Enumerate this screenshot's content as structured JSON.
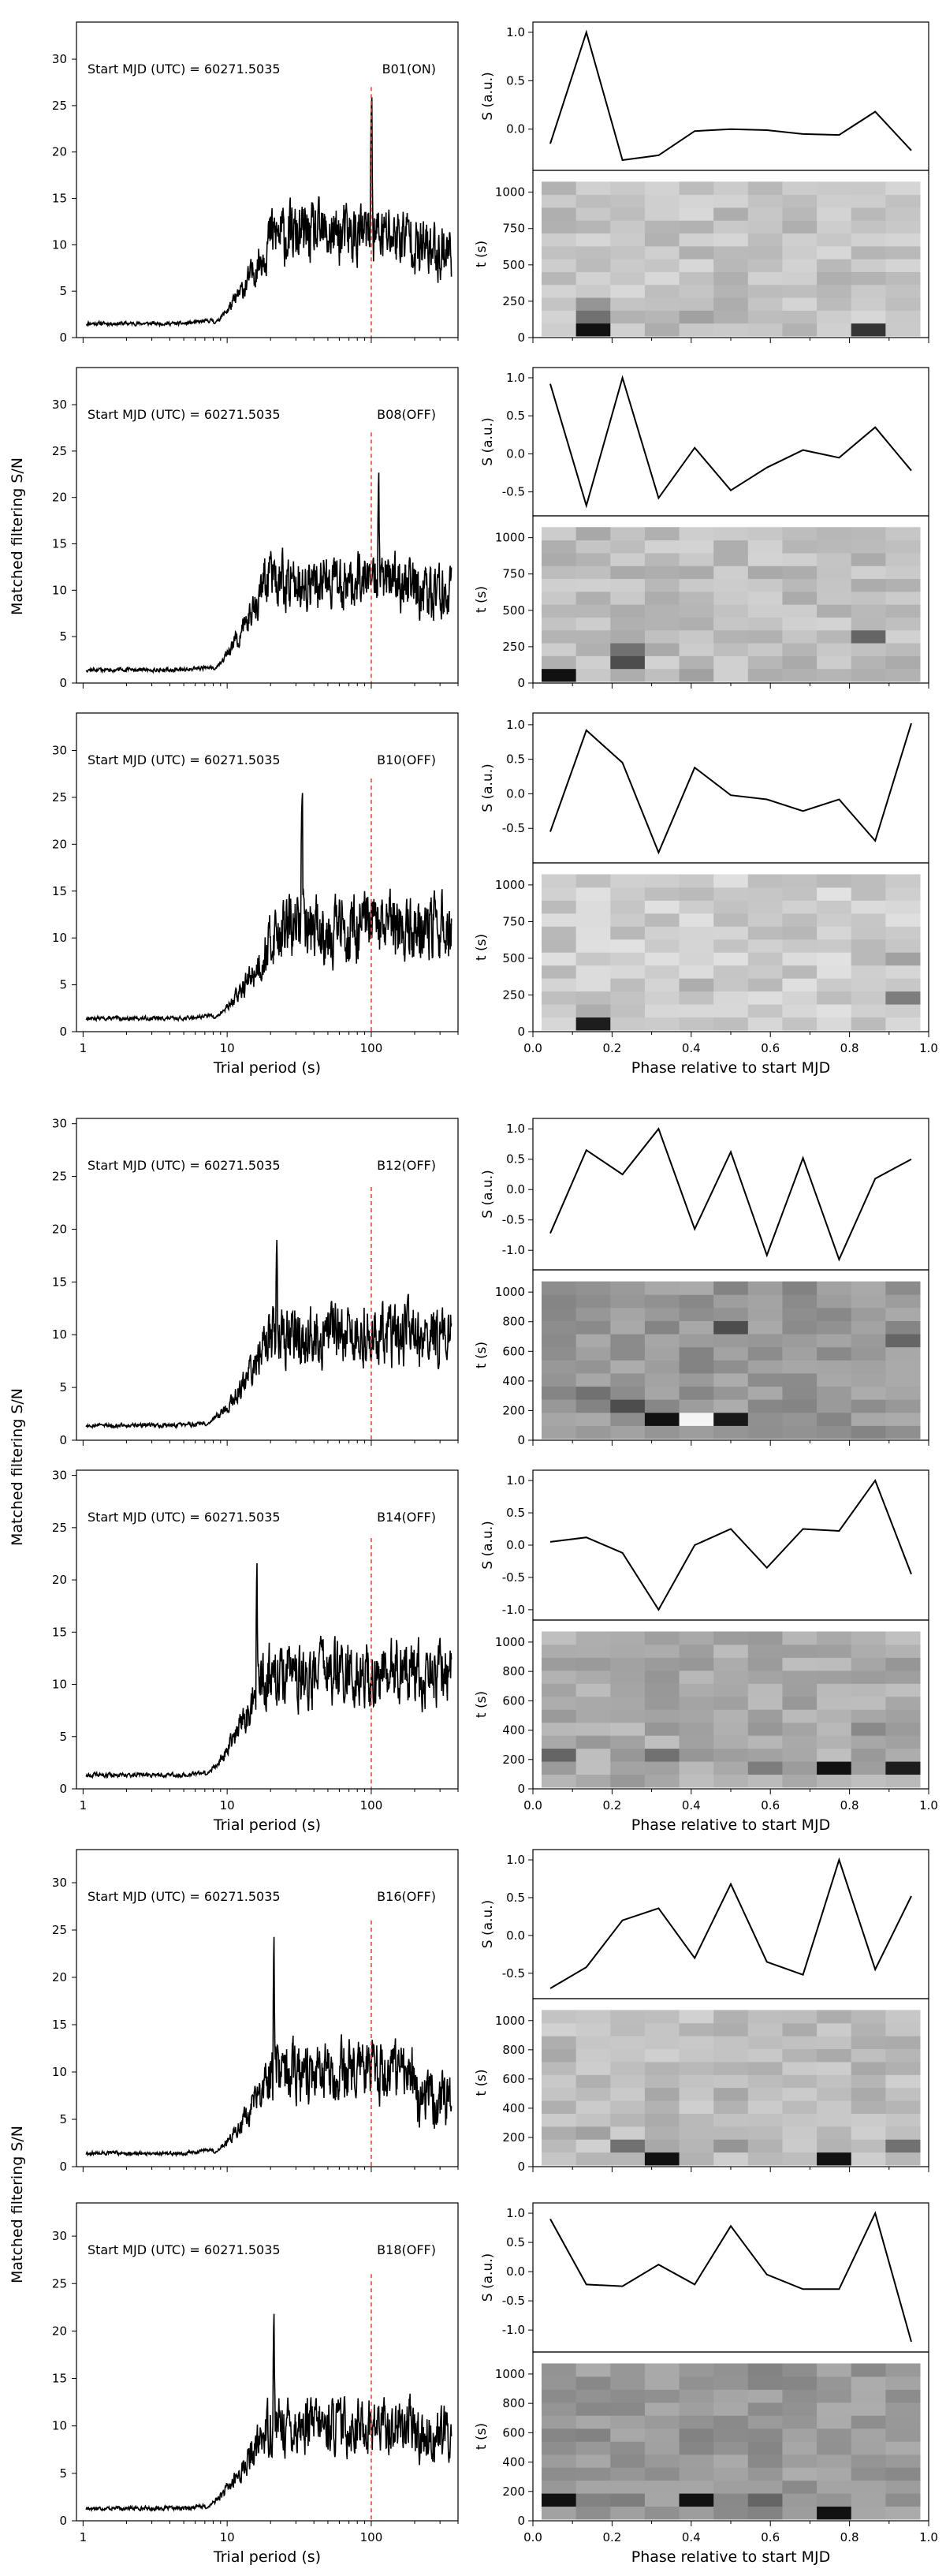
{
  "figures": [
    {
      "xlabel_left": "Trial period (s)",
      "xlabel_right": "Phase relative to start MJD",
      "ylabel_left": "Matched filtering S/N",
      "ylabel_profile": "S (a.u.)",
      "ylabel_heat": "t (s)"
    },
    {
      "xlabel_left": "Trial period (s)",
      "xlabel_right": "Phase relative to start MJD",
      "ylabel_left": "Matched filtering S/N",
      "ylabel_profile": "S (a.u.)",
      "ylabel_heat": "t (s)"
    },
    {
      "xlabel_left": "Trial period (s)",
      "xlabel_right": "Phase relative to start MJD",
      "ylabel_left": "Matched filtering S/N",
      "ylabel_profile": "S (a.u.)",
      "ylabel_heat": "t (s)"
    }
  ],
  "chart_data": [
    {
      "type": "line",
      "panel": "periodogram",
      "annotation": "Start MJD (UTC) = 60271.5035",
      "beam_label": "B01(ON)",
      "xscale": "log",
      "xlim": [
        0.9,
        400
      ],
      "ylim": [
        0,
        34
      ],
      "xticks": [
        1,
        10,
        100
      ],
      "xticklabels": [],
      "yticks": [
        0,
        5,
        10,
        15,
        20,
        25,
        30
      ],
      "marker_period": 100,
      "marker_top": 27,
      "shape": {
        "base": 1.4,
        "jit": 0.6,
        "rise": 8,
        "rise_end": 20,
        "level": 11,
        "var": 4.5,
        "late": 9.5,
        "peak_x": 100,
        "peak_y": 26.5,
        "seed": 11
      },
      "series": [
        {
          "values": [
            -0.15,
            1.0,
            -0.32,
            -0.27,
            -0.02,
            0.0,
            -0.01,
            -0.05,
            -0.06,
            0.18,
            -0.22
          ]
        }
      ],
      "heat_ylim": [
        0,
        1150
      ],
      "heat_yticks": [
        0,
        250,
        500,
        750,
        1000
      ],
      "heat_levels": {
        "seed": 21,
        "hot": [
          [
            0,
            1,
            0.95
          ],
          [
            0,
            3,
            0.3
          ],
          [
            0,
            9,
            0.8
          ],
          [
            1,
            1,
            0.55
          ],
          [
            1,
            4,
            0.35
          ],
          [
            2,
            1,
            0.4
          ],
          [
            2,
            5,
            0.3
          ]
        ],
        "base": 0.12
      }
    },
    {
      "type": "line",
      "panel": "periodogram",
      "annotation": "Start MJD (UTC) = 60271.5035",
      "beam_label": "B08(OFF)",
      "xscale": "log",
      "xlim": [
        0.9,
        400
      ],
      "ylim": [
        0,
        34
      ],
      "xticks": [
        1,
        10,
        100
      ],
      "xticklabels": [],
      "yticks": [
        0,
        5,
        10,
        15,
        20,
        25,
        30
      ],
      "marker_period": 100,
      "marker_top": 27,
      "shape": {
        "base": 1.3,
        "jit": 0.6,
        "rise": 8,
        "rise_end": 18,
        "level": 11,
        "var": 4.0,
        "late": 9.5,
        "peak_x": 112,
        "peak_y": 24,
        "seed": 12
      },
      "series": [
        {
          "values": [
            0.92,
            -0.68,
            1.0,
            -0.58,
            0.08,
            -0.48,
            -0.18,
            0.05,
            -0.05,
            0.35,
            -0.22
          ]
        }
      ],
      "heat_ylim": [
        0,
        1150
      ],
      "heat_yticks": [
        0,
        250,
        500,
        750,
        1000
      ],
      "heat_levels": {
        "seed": 22,
        "hot": [
          [
            0,
            0,
            0.95
          ],
          [
            1,
            2,
            0.7
          ],
          [
            2,
            2,
            0.55
          ],
          [
            3,
            9,
            0.6
          ],
          [
            0,
            4,
            0.35
          ],
          [
            0,
            6,
            0.3
          ]
        ],
        "base": 0.14
      }
    },
    {
      "type": "line",
      "panel": "periodogram",
      "annotation": "Start MJD (UTC) = 60271.5035",
      "beam_label": "B10(OFF)",
      "xscale": "log",
      "xlim": [
        0.9,
        400
      ],
      "ylim": [
        0,
        34
      ],
      "xticks": [
        1,
        10,
        100
      ],
      "xticklabels": [
        "1",
        "10",
        "100"
      ],
      "yticks": [
        0,
        5,
        10,
        15,
        20,
        25,
        30
      ],
      "marker_period": 100,
      "marker_top": 27,
      "shape": {
        "base": 1.3,
        "jit": 0.6,
        "rise": 8,
        "rise_end": 22,
        "level": 11,
        "var": 5.0,
        "late": 11,
        "peak_x": 33,
        "peak_y": 26,
        "seed": 13
      },
      "series": [
        {
          "values": [
            -0.55,
            0.92,
            0.45,
            -0.85,
            0.38,
            -0.02,
            -0.08,
            -0.25,
            -0.08,
            -0.68,
            1.02
          ]
        }
      ],
      "heat_ylim": [
        0,
        1150
      ],
      "heat_yticks": [
        0,
        250,
        500,
        750,
        1000
      ],
      "heat_levels": {
        "seed": 23,
        "hot": [
          [
            0,
            1,
            0.9
          ],
          [
            2,
            10,
            0.5
          ],
          [
            1,
            1,
            0.3
          ],
          [
            3,
            4,
            0.3
          ],
          [
            5,
            10,
            0.35
          ]
        ],
        "base": 0.08
      }
    },
    {
      "type": "line",
      "panel": "periodogram",
      "annotation": "Start MJD (UTC) = 60271.5035",
      "beam_label": "B12(OFF)",
      "xscale": "log",
      "xlim": [
        0.9,
        400
      ],
      "ylim": [
        0,
        30.5
      ],
      "xticks": [
        1,
        10,
        100
      ],
      "xticklabels": [],
      "yticks": [
        0,
        5,
        10,
        15,
        20,
        25,
        30
      ],
      "marker_period": 100,
      "marker_top": 24,
      "shape": {
        "base": 1.3,
        "jit": 0.6,
        "rise": 7,
        "rise_end": 20,
        "level": 10,
        "var": 4.0,
        "late": 9.5,
        "peak_x": 22,
        "peak_y": 20,
        "seed": 14
      },
      "series": [
        {
          "values": [
            -0.72,
            0.65,
            0.25,
            1.0,
            -0.65,
            0.62,
            -1.08,
            0.52,
            -1.15,
            0.18,
            0.5
          ]
        }
      ],
      "heat_ylim": [
        0,
        1150
      ],
      "heat_yticks": [
        0,
        200,
        400,
        600,
        800,
        1000
      ],
      "heat_levels": {
        "seed": 24,
        "hot": [
          [
            1,
            3,
            0.95
          ],
          [
            1,
            5,
            0.92
          ],
          [
            1,
            4,
            0.0
          ],
          [
            2,
            2,
            0.7
          ],
          [
            8,
            5,
            0.7
          ],
          [
            7,
            10,
            0.6
          ],
          [
            3,
            1,
            0.55
          ]
        ],
        "base": 0.3
      }
    },
    {
      "type": "line",
      "panel": "periodogram",
      "annotation": "Start MJD (UTC) = 60271.5035",
      "beam_label": "B14(OFF)",
      "xscale": "log",
      "xlim": [
        0.9,
        400
      ],
      "ylim": [
        0,
        30.5
      ],
      "xticks": [
        1,
        10,
        100
      ],
      "xticklabels": [
        "1",
        "10",
        "100"
      ],
      "yticks": [
        0,
        5,
        10,
        15,
        20,
        25,
        30
      ],
      "marker_period": 100,
      "marker_top": 24,
      "shape": {
        "base": 1.2,
        "jit": 0.6,
        "rise": 7,
        "rise_end": 18,
        "level": 11,
        "var": 4.2,
        "late": 11,
        "peak_x": 16,
        "peak_y": 23,
        "seed": 15
      },
      "series": [
        {
          "values": [
            0.05,
            0.12,
            -0.12,
            -1.0,
            0.0,
            0.25,
            -0.35,
            0.25,
            0.22,
            1.0,
            -0.45
          ]
        }
      ],
      "heat_ylim": [
        0,
        1150
      ],
      "heat_yticks": [
        0,
        200,
        400,
        600,
        800,
        1000
      ],
      "heat_levels": {
        "seed": 25,
        "hot": [
          [
            1,
            8,
            0.95
          ],
          [
            1,
            10,
            0.9
          ],
          [
            2,
            0,
            0.6
          ],
          [
            2,
            3,
            0.55
          ],
          [
            1,
            6,
            0.5
          ],
          [
            4,
            9,
            0.45
          ]
        ],
        "base": 0.22
      }
    },
    {
      "type": "line",
      "panel": "periodogram",
      "annotation": "Start MJD (UTC) = 60271.5035",
      "beam_label": "B16(OFF)",
      "xscale": "log",
      "xlim": [
        0.9,
        400
      ],
      "ylim": [
        0,
        33.5
      ],
      "xticks": [
        1,
        10,
        100
      ],
      "xticklabels": [],
      "yticks": [
        0,
        5,
        10,
        15,
        20,
        25,
        30
      ],
      "marker_period": 100,
      "marker_top": 26,
      "shape": {
        "base": 1.3,
        "jit": 0.6,
        "rise": 8,
        "rise_end": 20,
        "level": 10,
        "var": 4.2,
        "late": 7,
        "peak_x": 21,
        "peak_y": 26,
        "seed": 16
      },
      "series": [
        {
          "values": [
            -0.7,
            -0.42,
            0.2,
            0.36,
            -0.3,
            0.68,
            -0.35,
            -0.52,
            1.0,
            -0.45,
            0.52
          ]
        }
      ],
      "heat_ylim": [
        0,
        1150
      ],
      "heat_yticks": [
        0,
        200,
        400,
        600,
        800,
        1000
      ],
      "heat_levels": {
        "seed": 26,
        "hot": [
          [
            0,
            3,
            0.95
          ],
          [
            0,
            8,
            0.95
          ],
          [
            1,
            2,
            0.55
          ],
          [
            1,
            10,
            0.55
          ],
          [
            1,
            5,
            0.4
          ],
          [
            2,
            1,
            0.35
          ]
        ],
        "base": 0.15
      }
    },
    {
      "type": "line",
      "panel": "periodogram",
      "annotation": "Start MJD (UTC) = 60271.5035",
      "beam_label": "B18(OFF)",
      "xscale": "log",
      "xlim": [
        0.9,
        400
      ],
      "ylim": [
        0,
        33.5
      ],
      "xticks": [
        1,
        10,
        100
      ],
      "xticklabels": [
        "1",
        "10",
        "100"
      ],
      "yticks": [
        0,
        5,
        10,
        15,
        20,
        25,
        30
      ],
      "marker_period": 100,
      "marker_top": 26,
      "shape": {
        "base": 1.2,
        "jit": 0.6,
        "rise": 7,
        "rise_end": 19,
        "level": 10,
        "var": 4.0,
        "late": 9,
        "peak_x": 21,
        "peak_y": 23,
        "seed": 17
      },
      "series": [
        {
          "values": [
            0.9,
            -0.22,
            -0.25,
            0.12,
            -0.22,
            0.78,
            -0.05,
            -0.3,
            -0.3,
            1.0,
            -1.2
          ]
        }
      ],
      "heat_ylim": [
        0,
        1150
      ],
      "heat_yticks": [
        0,
        200,
        400,
        600,
        800,
        1000
      ],
      "heat_levels": {
        "seed": 27,
        "hot": [
          [
            1,
            0,
            0.95
          ],
          [
            1,
            4,
            0.95
          ],
          [
            0,
            8,
            0.95
          ],
          [
            1,
            6,
            0.6
          ],
          [
            1,
            2,
            0.5
          ],
          [
            4,
            6,
            0.45
          ]
        ],
        "base": 0.3
      }
    }
  ]
}
